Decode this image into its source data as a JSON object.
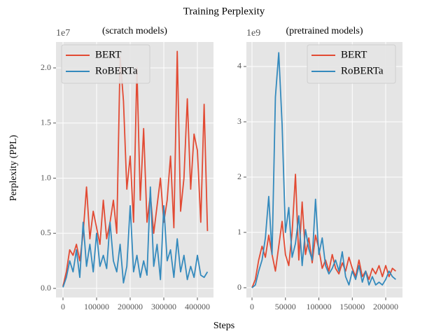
{
  "title": "Training Perplexity",
  "xlabel": "Steps",
  "ylabel": "Perplexity (PPL)",
  "chart_data": [
    {
      "type": "line",
      "subtitle": "(scratch models)",
      "offset_label": "1e7",
      "grid": true,
      "legend": "upper left",
      "x": [
        0,
        10000,
        20000,
        30000,
        40000,
        50000,
        60000,
        70000,
        80000,
        90000,
        100000,
        110000,
        120000,
        130000,
        140000,
        150000,
        160000,
        170000,
        180000,
        190000,
        200000,
        210000,
        220000,
        230000,
        240000,
        250000,
        260000,
        270000,
        280000,
        290000,
        300000,
        310000,
        320000,
        330000,
        340000,
        350000,
        360000,
        370000,
        380000,
        390000,
        400000,
        410000,
        420000,
        430000
      ],
      "series": [
        {
          "name": "BERT",
          "color": "#E24A33",
          "values": [
            200000,
            1500000,
            3500000,
            3000000,
            4000000,
            2500000,
            5000000,
            9200000,
            4500000,
            7000000,
            5500000,
            4000000,
            8000000,
            4500000,
            6000000,
            8000000,
            5000000,
            21000000,
            17000000,
            9000000,
            12000000,
            6000000,
            20000000,
            8000000,
            14500000,
            6000000,
            8500000,
            5000000,
            7500000,
            10000000,
            6000000,
            8000000,
            12000000,
            5500000,
            21500000,
            7000000,
            10000000,
            17200000,
            9000000,
            14000000,
            12500000,
            6000000,
            16700000,
            5200000
          ]
        },
        {
          "name": "RoBERTa",
          "color": "#348ABD",
          "values": [
            100000,
            1000000,
            2500000,
            1500000,
            3500000,
            1000000,
            6000000,
            2000000,
            4000000,
            1500000,
            5000000,
            2000000,
            3000000,
            1800000,
            6000000,
            2500000,
            1500000,
            4000000,
            500000,
            2000000,
            7500000,
            1500000,
            3000000,
            1000000,
            2500000,
            1200000,
            9200000,
            2000000,
            4000000,
            800000,
            7500000,
            2500000,
            3500000,
            1000000,
            4500000,
            1500000,
            3000000,
            800000,
            2000000,
            1000000,
            3000000,
            1200000,
            1000000,
            1500000
          ]
        }
      ],
      "xlim": [
        -20800,
        447900
      ],
      "xticks": [
        0,
        100000,
        200000,
        300000,
        400000
      ],
      "ylim": [
        -825000,
        22350000
      ],
      "yticks": [
        {
          "value": 0,
          "label": "0.0"
        },
        {
          "value": 5000000,
          "label": "0.5"
        },
        {
          "value": 10000000,
          "label": "1.0"
        },
        {
          "value": 15000000,
          "label": "1.5"
        },
        {
          "value": 20000000,
          "label": "2.0"
        }
      ]
    },
    {
      "type": "line",
      "subtitle": "(pretrained models)",
      "offset_label": "1e9",
      "grid": true,
      "legend": "upper right",
      "x": [
        0,
        5000,
        10000,
        15000,
        20000,
        25000,
        30000,
        35000,
        40000,
        45000,
        50000,
        55000,
        60000,
        65000,
        70000,
        75000,
        80000,
        85000,
        90000,
        95000,
        100000,
        105000,
        110000,
        115000,
        120000,
        125000,
        130000,
        135000,
        140000,
        145000,
        150000,
        155000,
        160000,
        165000,
        170000,
        175000,
        180000,
        185000,
        190000,
        195000,
        200000,
        205000,
        210000,
        215000
      ],
      "series": [
        {
          "name": "BERT",
          "color": "#E24A33",
          "values": [
            0,
            150000000,
            500000000,
            750000000,
            550000000,
            950000000,
            600000000,
            300000000,
            750000000,
            1200000000,
            600000000,
            400000000,
            1000000000,
            2050000000,
            500000000,
            1550000000,
            600000000,
            900000000,
            450000000,
            950000000,
            700000000,
            350000000,
            500000000,
            300000000,
            600000000,
            350000000,
            250000000,
            450000000,
            300000000,
            550000000,
            350000000,
            200000000,
            500000000,
            200000000,
            300000000,
            150000000,
            350000000,
            250000000,
            400000000,
            200000000,
            400000000,
            200000000,
            350000000,
            300000000
          ]
        },
        {
          "name": "RoBERTa",
          "color": "#348ABD",
          "values": [
            0,
            50000000,
            300000000,
            500000000,
            900000000,
            1650000000,
            600000000,
            3450000000,
            4250000000,
            2950000000,
            1000000000,
            1450000000,
            550000000,
            800000000,
            1300000000,
            400000000,
            1050000000,
            700000000,
            500000000,
            1600000000,
            600000000,
            900000000,
            400000000,
            250000000,
            350000000,
            500000000,
            300000000,
            650000000,
            200000000,
            50000000,
            300000000,
            150000000,
            400000000,
            100000000,
            300000000,
            50000000,
            200000000,
            50000000,
            100000000,
            50000000,
            150000000,
            300000000,
            200000000,
            150000000
          ]
        }
      ],
      "xlim": [
        -8400,
        225100
      ],
      "xticks": [
        0,
        50000,
        100000,
        150000,
        200000
      ],
      "ylim": [
        -177000000,
        4443000000
      ],
      "yticks": [
        {
          "value": 0,
          "label": "0"
        },
        {
          "value": 1000000000,
          "label": "1"
        },
        {
          "value": 2000000000,
          "label": "2"
        },
        {
          "value": 3000000000,
          "label": "3"
        },
        {
          "value": 4000000000,
          "label": "4"
        }
      ]
    }
  ]
}
